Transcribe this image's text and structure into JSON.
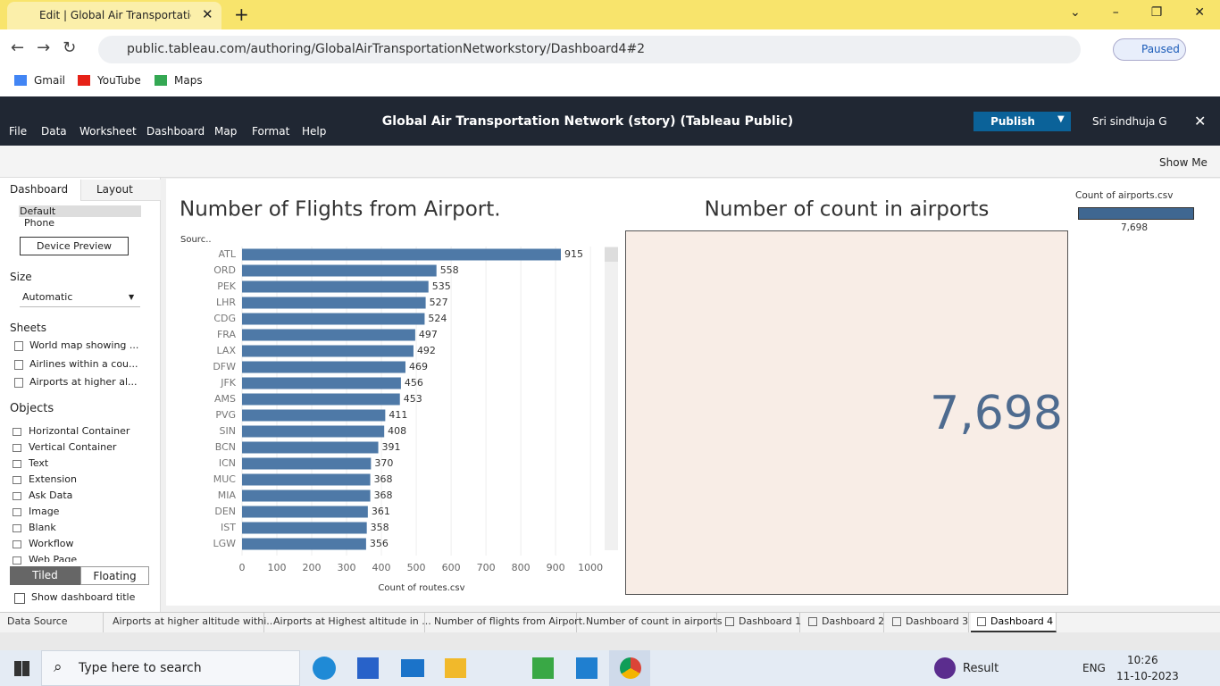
{
  "browser": {
    "tab_title": "Edit | Global Air Transportation N",
    "url": "public.tableau.com/authoring/GlobalAirTransportationNetworkstory/Dashboard4#2",
    "profile_status": "Paused",
    "bookmarks": [
      "Gmail",
      "YouTube",
      "Maps"
    ]
  },
  "app": {
    "title": "Global Air Transportation Network (story) (Tableau Public)",
    "menu": [
      "File",
      "Data",
      "Worksheet",
      "Dashboard",
      "Map",
      "Format",
      "Help"
    ],
    "publish": "Publish",
    "user": "Sri sindhuja G",
    "show_me": "Show Me"
  },
  "sidebar": {
    "tabs": [
      "Dashboard",
      "Layout"
    ],
    "devices": [
      "Default",
      "Phone"
    ],
    "device_preview": "Device Preview",
    "size_heading": "Size",
    "size_value": "Automatic",
    "sheets_heading": "Sheets",
    "sheets": [
      "World map showing ...",
      "Airlines within a cou...",
      "Airports at higher al..."
    ],
    "objects_heading": "Objects",
    "objects": [
      "Horizontal Container",
      "Vertical Container",
      "Text",
      "Extension",
      "Ask Data",
      "Image",
      "Blank",
      "Workflow",
      "Web Page"
    ],
    "modes": [
      "Tiled",
      "Floating"
    ],
    "show_title": "Show dashboard title"
  },
  "chart_data": [
    {
      "type": "bar",
      "orientation": "horizontal",
      "title": "Number of Flights from Airport.",
      "y_label": "Sourc..",
      "x_label": "Count of routes.csv",
      "categories": [
        "ATL",
        "ORD",
        "PEK",
        "LHR",
        "CDG",
        "FRA",
        "LAX",
        "DFW",
        "JFK",
        "AMS",
        "PVG",
        "SIN",
        "BCN",
        "ICN",
        "MUC",
        "MIA",
        "DEN",
        "IST",
        "LGW"
      ],
      "values": [
        915,
        558,
        535,
        527,
        524,
        497,
        492,
        469,
        456,
        453,
        411,
        408,
        391,
        370,
        368,
        368,
        361,
        358,
        356
      ],
      "color": "#4e79a7",
      "xlim": [
        0,
        1015
      ],
      "xticks": [
        0,
        100,
        200,
        300,
        400,
        500,
        600,
        700,
        800,
        900,
        1000
      ],
      "grid": true
    },
    {
      "type": "text",
      "title": "Number of count in airports",
      "values": [
        7698
      ],
      "value_labels": [
        "7,698"
      ],
      "legend_title": "Count of airports.csv",
      "color": "#3f6791"
    }
  ],
  "sheet_tabs": [
    "Data Source",
    "Airports at higher altitude withi...",
    "Airports at Highest altitude in ...",
    "Number of flights from Airport.",
    "Number of count in airports",
    "Dashboard 1",
    "Dashboard 2",
    "Dashboard 3",
    "Dashboard 4"
  ],
  "taskbar": {
    "search": "Type here to search",
    "result": "Result",
    "lang": "ENG",
    "time": "10:26",
    "date": "11-10-2023"
  }
}
